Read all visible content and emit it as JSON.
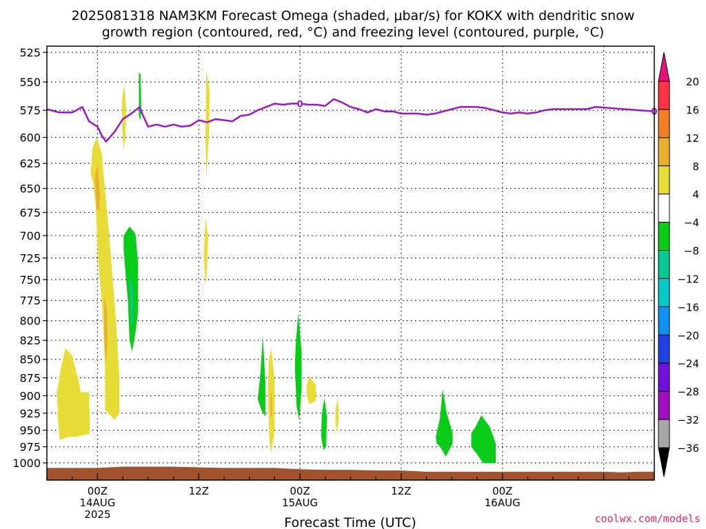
{
  "chart_data": {
    "type": "heatmap",
    "title": [
      "2025081318 NAM3KM Forecast Omega (shaded, μbar/s) for KOKX with dendritic snow",
      "growth region (contoured, red, °C) and freezing level (contoured, purple, °C)"
    ],
    "xlabel": "Forecast Time (UTC)",
    "ylabel": "",
    "credit": "coolwx.com/models",
    "x_unit": "forecast hour from 2025-08-13 18Z",
    "xlim": [
      -6,
      66
    ],
    "ylim": [
      525,
      1015
    ],
    "y_scale": "log-pressure",
    "y_ticks": [
      525,
      550,
      575,
      600,
      625,
      650,
      675,
      700,
      725,
      750,
      775,
      800,
      825,
      850,
      875,
      900,
      925,
      950,
      975,
      1000
    ],
    "x_ticks": [
      {
        "x": 0,
        "lines": [
          "00Z",
          "14AUG",
          "2025"
        ]
      },
      {
        "x": 12,
        "lines": [
          "12Z"
        ]
      },
      {
        "x": 24,
        "lines": [
          "00Z",
          "15AUG"
        ]
      },
      {
        "x": 36,
        "lines": [
          "12Z"
        ]
      },
      {
        "x": 48,
        "lines": [
          "00Z",
          "16AUG"
        ]
      }
    ],
    "grid": true,
    "colorbar": {
      "labels": [
        "20",
        "16",
        "12",
        "8",
        "4",
        "−4",
        "−8",
        "−12",
        "−16",
        "−20",
        "−24",
        "−28",
        "−32",
        "−36"
      ],
      "colors": [
        "#ff3344",
        "#f08028",
        "#e8b030",
        "#e8dc38",
        "#ffffff",
        "#08cc18",
        "#08c890",
        "#08c8c8",
        "#1090f0",
        "#2040e8",
        "#7010d8",
        "#a010c0",
        "#a8a8a8"
      ],
      "top_color": "#e8107a",
      "bottom_color": "#000000"
    },
    "freezing_level": {
      "name": "0°C freezing level",
      "color": "#9a14c8",
      "label": "0",
      "label_at": [
        24,
        66
      ],
      "x": [
        -6,
        -4.5,
        -3,
        -1.8,
        -1,
        0,
        0.5,
        1,
        2,
        3,
        4,
        5,
        5.3,
        6,
        7,
        8,
        9,
        10,
        11,
        12,
        13,
        14,
        15,
        16,
        17,
        18,
        19,
        20,
        21,
        22,
        23,
        24,
        25,
        26,
        27,
        28,
        29,
        30,
        31,
        32,
        33,
        34,
        35,
        36,
        37,
        38,
        39,
        40,
        41,
        42,
        43,
        44,
        45,
        46,
        47,
        48,
        49,
        50,
        51,
        52,
        53,
        54,
        55,
        56,
        57,
        58,
        59,
        60
      ],
      "y": [
        574,
        577,
        577,
        572,
        585,
        590,
        598,
        604,
        595,
        583,
        578,
        572,
        578,
        590,
        588,
        590,
        588,
        590,
        589,
        584,
        586,
        583,
        584,
        585,
        580,
        579,
        575,
        572,
        569,
        570,
        569,
        569,
        570,
        570,
        571,
        565,
        568,
        572,
        574,
        577,
        574,
        576,
        576,
        578,
        578,
        578,
        579,
        578,
        576,
        574,
        572,
        572,
        572,
        573,
        575,
        577,
        578,
        577,
        578,
        577,
        575,
        574,
        574,
        574,
        574,
        574,
        572,
        576
      ]
    },
    "omega_shading": [
      {
        "value": 6,
        "color": "#e8dc38",
        "points": [
          [
            -4.8,
            895
          ],
          [
            -4.4,
            865
          ],
          [
            -3.8,
            835
          ],
          [
            -3,
            845
          ],
          [
            -2.2,
            880
          ],
          [
            -2,
            895
          ],
          [
            -1,
            895
          ],
          [
            -0.9,
            955
          ],
          [
            -2.5,
            960
          ],
          [
            -3.5,
            960
          ],
          [
            -4.5,
            965
          ],
          [
            -4.7,
            930
          ]
        ]
      },
      {
        "value": 6,
        "color": "#e8dc38",
        "points": [
          [
            -0.8,
            635
          ],
          [
            -0.6,
            610
          ],
          [
            -0.1,
            600
          ],
          [
            0.5,
            615
          ],
          [
            1.3,
            690
          ],
          [
            2.2,
            800
          ],
          [
            2.6,
            875
          ],
          [
            2.6,
            925
          ],
          [
            2,
            935
          ],
          [
            0.9,
            920
          ],
          [
            0.9,
            860
          ],
          [
            0.6,
            790
          ],
          [
            0.1,
            730
          ],
          [
            -0.2,
            670
          ],
          [
            -0.5,
            645
          ]
        ]
      },
      {
        "value": 10,
        "color": "#e8b030",
        "points": [
          [
            -0.3,
            640
          ],
          [
            0,
            625
          ],
          [
            0.3,
            655
          ],
          [
            0.2,
            672
          ],
          [
            -0.1,
            672
          ]
        ]
      },
      {
        "value": 10,
        "color": "#e8b030",
        "points": [
          [
            0.8,
            770
          ],
          [
            1.1,
            785
          ],
          [
            1.2,
            830
          ],
          [
            1,
            855
          ],
          [
            0.8,
            820
          ]
        ]
      },
      {
        "value": 6,
        "color": "#e8dc38",
        "points": [
          [
            2.9,
            565
          ],
          [
            3.2,
            552
          ],
          [
            3.4,
            575
          ],
          [
            3.3,
            600
          ],
          [
            3.1,
            612
          ],
          [
            2.9,
            590
          ]
        ]
      },
      {
        "value": -6,
        "color": "#08cc18",
        "points": [
          [
            3.1,
            700
          ],
          [
            3.8,
            690
          ],
          [
            4.5,
            698
          ],
          [
            4.8,
            730
          ],
          [
            4.8,
            790
          ],
          [
            4.5,
            815
          ],
          [
            4.1,
            840
          ],
          [
            3.8,
            825
          ],
          [
            3.6,
            775
          ],
          [
            3.3,
            740
          ],
          [
            3.1,
            715
          ]
        ]
      },
      {
        "value": -10,
        "color": "#08c890",
        "points": [
          [
            3.8,
            745
          ],
          [
            4.2,
            760
          ],
          [
            4.2,
            800
          ],
          [
            4,
            810
          ],
          [
            3.9,
            775
          ]
        ]
      },
      {
        "value": -6,
        "color": "#08cc18",
        "points": [
          [
            4.9,
            542
          ],
          [
            5.1,
            543
          ],
          [
            5.2,
            575
          ],
          [
            5.1,
            584
          ],
          [
            4.9,
            580
          ]
        ]
      },
      {
        "value": 6,
        "color": "#e8dc38",
        "points": [
          [
            12.9,
            540
          ],
          [
            13.3,
            558
          ],
          [
            13.2,
            600
          ],
          [
            12.9,
            640
          ],
          [
            12.8,
            600
          ]
        ]
      },
      {
        "value": 6,
        "color": "#e8dc38",
        "points": [
          [
            12.8,
            680
          ],
          [
            13.1,
            700
          ],
          [
            13,
            735
          ],
          [
            12.8,
            758
          ],
          [
            12.6,
            720
          ]
        ]
      },
      {
        "value": -6,
        "color": "#08cc18",
        "points": [
          [
            19.3,
            870
          ],
          [
            19.6,
            820
          ],
          [
            19.9,
            880
          ],
          [
            19.9,
            930
          ],
          [
            19.4,
            920
          ],
          [
            19,
            905
          ]
        ]
      },
      {
        "value": 6,
        "color": "#e8dc38",
        "points": [
          [
            20.3,
            850
          ],
          [
            20.6,
            836
          ],
          [
            21,
            880
          ],
          [
            21,
            950
          ],
          [
            20.6,
            985
          ],
          [
            20.4,
            970
          ],
          [
            20.2,
            900
          ]
        ]
      },
      {
        "value": 10,
        "color": "#e8b030",
        "points": [
          [
            20.5,
            890
          ],
          [
            20.7,
            905
          ],
          [
            20.7,
            930
          ],
          [
            20.5,
            930
          ]
        ]
      },
      {
        "value": -6,
        "color": "#08cc18",
        "points": [
          [
            23.5,
            830
          ],
          [
            23.8,
            790
          ],
          [
            24.2,
            840
          ],
          [
            24.2,
            890
          ],
          [
            23.9,
            935
          ],
          [
            23.6,
            915
          ],
          [
            23.4,
            860
          ]
        ]
      },
      {
        "value": 6,
        "color": "#e8dc38",
        "points": [
          [
            24.8,
            885
          ],
          [
            25.1,
            873
          ],
          [
            25.9,
            885
          ],
          [
            25.9,
            907
          ],
          [
            25.1,
            912
          ],
          [
            24.8,
            900
          ]
        ]
      },
      {
        "value": -6,
        "color": "#08cc18",
        "points": [
          [
            26.6,
            925
          ],
          [
            26.9,
            903
          ],
          [
            27.2,
            930
          ],
          [
            27.1,
            975
          ],
          [
            26.8,
            980
          ],
          [
            26.5,
            960
          ]
        ]
      },
      {
        "value": 6,
        "color": "#e8dc38",
        "points": [
          [
            28.2,
            920
          ],
          [
            28.5,
            903
          ],
          [
            28.6,
            930
          ],
          [
            28.4,
            955
          ],
          [
            28.2,
            940
          ]
        ]
      },
      {
        "value": -6,
        "color": "#08cc18",
        "points": [
          [
            40.1,
            960
          ],
          [
            40.6,
            932
          ],
          [
            40.9,
            890
          ],
          [
            41.4,
            925
          ],
          [
            42.1,
            955
          ],
          [
            42.1,
            970
          ],
          [
            41.3,
            990
          ],
          [
            40.6,
            975
          ],
          [
            40.2,
            970
          ]
        ]
      },
      {
        "value": -6,
        "color": "#08cc18",
        "points": [
          [
            44.3,
            955
          ],
          [
            44.8,
            945
          ],
          [
            45.5,
            928
          ],
          [
            46.5,
            945
          ],
          [
            47.2,
            970
          ],
          [
            47.2,
            1000
          ],
          [
            45.7,
            1000
          ],
          [
            44.9,
            985
          ],
          [
            44.3,
            975
          ]
        ]
      }
    ],
    "terrain": {
      "color": "#a0522d",
      "x": [
        -6,
        0,
        3,
        6,
        9,
        12,
        15,
        18,
        21,
        24,
        27,
        30,
        33,
        36,
        39,
        42,
        45,
        48,
        51,
        54,
        57,
        60,
        62,
        64,
        66
      ],
      "y": [
        1008,
        1008,
        1006,
        1006,
        1006,
        1007,
        1008,
        1008,
        1008,
        1010,
        1011,
        1011,
        1012,
        1012,
        1014,
        1014,
        1014,
        1014,
        1014,
        1014,
        1014,
        1014,
        1015,
        1014,
        1014
      ]
    }
  }
}
